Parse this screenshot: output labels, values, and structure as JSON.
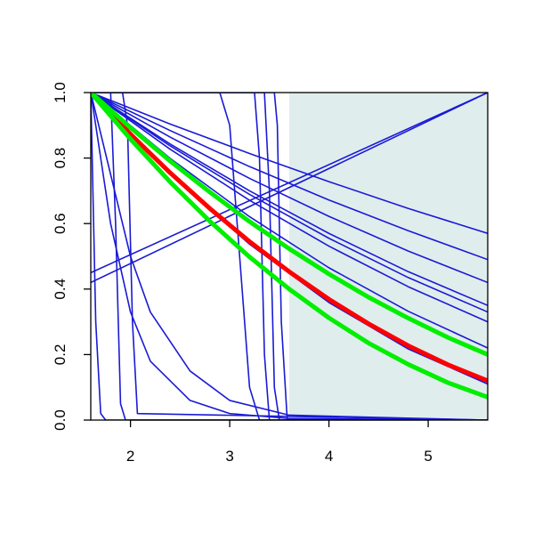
{
  "chart_data": {
    "type": "line",
    "xlim": [
      1.6,
      5.6
    ],
    "ylim": [
      0,
      1
    ],
    "xticks": [
      2,
      3,
      4,
      5
    ],
    "yticks": [
      {
        "value": 0,
        "label": "0.0"
      },
      0.2,
      0.4,
      0.6,
      0.8,
      {
        "value": 1,
        "label": "1.0"
      }
    ],
    "shade": {
      "x": [
        3.6,
        5.6
      ],
      "color": "#e0eded"
    },
    "series": [
      {
        "color": "#1a1ad6",
        "x": [
          1.6,
          2.4,
          3.2,
          4.0,
          4.8,
          5.6
        ],
        "values": [
          1,
          0.904,
          0.814,
          0.728,
          0.646,
          0.57
        ]
      },
      {
        "color": "#1a1ad6",
        "x": [
          1.6,
          2.4,
          3.2,
          4.0,
          4.8,
          5.6
        ],
        "values": [
          1,
          0.884,
          0.774,
          0.672,
          0.578,
          0.49
        ]
      },
      {
        "color": "#1a1ad6",
        "x": [
          1.6,
          2.4,
          3.2,
          4.0,
          4.8,
          5.6
        ],
        "values": [
          1,
          0.864,
          0.738,
          0.622,
          0.516,
          0.42
        ]
      },
      {
        "color": "#1a1ad6",
        "x": [
          1.6,
          2.4,
          3.2,
          4.0,
          4.8,
          5.6
        ],
        "values": [
          1,
          0.843,
          0.7,
          0.57,
          0.453,
          0.35
        ]
      },
      {
        "color": "#1a1ad6",
        "x": [
          1.6,
          2.4,
          3.2,
          4.0,
          4.8,
          5.6
        ],
        "values": [
          1,
          0.837,
          0.689,
          0.555,
          0.435,
          0.33
        ]
      },
      {
        "color": "#1a1ad6",
        "x": [
          1.6,
          2.4,
          3.2,
          4.0,
          4.8,
          5.6
        ],
        "values": [
          1,
          0.827,
          0.671,
          0.531,
          0.407,
          0.3
        ]
      },
      {
        "color": "#1a1ad6",
        "x": [
          1.6,
          2.4,
          3.2,
          4.0,
          4.8,
          5.6
        ],
        "values": [
          1,
          0.799,
          0.621,
          0.465,
          0.332,
          0.22
        ]
      },
      {
        "color": "#1a1ad6",
        "x": [
          1.6,
          2.4,
          3.2,
          4.0,
          4.8,
          5.6
        ],
        "values": [
          1,
          0.75,
          0.537,
          0.359,
          0.217,
          0.11
        ]
      },
      {
        "color": "#1a1ad6",
        "x": [
          1.6,
          5.6
        ],
        "values": [
          0.45,
          1
        ]
      },
      {
        "color": "#1a1ad6",
        "x": [
          1.6,
          5.6
        ],
        "values": [
          0.42,
          1
        ]
      },
      {
        "color": "#1a1ad6",
        "x": [
          1.6,
          2.9,
          3.0,
          3.1,
          3.2,
          3.3,
          5.6
        ],
        "values": [
          1,
          1,
          0.9,
          0.5,
          0.1,
          0,
          0
        ]
      },
      {
        "color": "#1a1ad6",
        "x": [
          1.6,
          3.25,
          3.3,
          3.35,
          3.4,
          5.6
        ],
        "values": [
          1,
          1,
          0.8,
          0.2,
          0,
          0
        ]
      },
      {
        "color": "#1a1ad6",
        "x": [
          1.6,
          3.35,
          3.4,
          3.45,
          3.5,
          5.6
        ],
        "values": [
          1,
          1,
          0.7,
          0.1,
          0,
          0
        ]
      },
      {
        "color": "#1a1ad6",
        "x": [
          1.6,
          3.45,
          3.48,
          3.52,
          3.58,
          5.6
        ],
        "values": [
          1,
          1,
          0.9,
          0.3,
          0,
          0
        ]
      },
      {
        "color": "#1a1ad6",
        "x": [
          1.6,
          1.8,
          1.85,
          1.9,
          1.95,
          5.6
        ],
        "values": [
          1,
          1,
          0.6,
          0.05,
          0,
          0
        ]
      },
      {
        "color": "#1a1ad6",
        "x": [
          1.6,
          1.92,
          1.97,
          2.02,
          2.07,
          5.6
        ],
        "values": [
          1,
          1,
          0.9,
          0.3,
          0.02,
          0
        ]
      },
      {
        "color": "#1a1ad6",
        "x": [
          1.6,
          1.8,
          2.0,
          2.2,
          2.6,
          3.0,
          3.6,
          5.6
        ],
        "values": [
          1,
          0.6,
          0.33,
          0.18,
          0.06,
          0.02,
          0.005,
          0
        ]
      },
      {
        "color": "#1a1ad6",
        "x": [
          1.6,
          1.8,
          2.0,
          2.2,
          2.6,
          3.0,
          3.6,
          5.6
        ],
        "values": [
          1,
          0.75,
          0.5,
          0.33,
          0.15,
          0.06,
          0.015,
          0
        ]
      },
      {
        "color": "#1a1ad6",
        "x": [
          1.6,
          1.65,
          1.7,
          1.75,
          5.6
        ],
        "values": [
          1,
          0.3,
          0.02,
          0,
          0
        ]
      },
      {
        "color": "#ff0000",
        "x": [
          1.6,
          2.0,
          2.4,
          2.8,
          3.2,
          3.6,
          4.0,
          4.4,
          4.8,
          5.2,
          5.6
        ],
        "values": [
          1,
          0.873,
          0.755,
          0.646,
          0.545,
          0.453,
          0.369,
          0.294,
          0.227,
          0.169,
          0.12
        ]
      },
      {
        "color": "#00ee00",
        "x": [
          1.6,
          2.0,
          2.4,
          2.8,
          3.2,
          3.6,
          4.0,
          4.4,
          4.8,
          5.2,
          5.6
        ],
        "values": [
          1,
          0.858,
          0.727,
          0.607,
          0.498,
          0.4,
          0.312,
          0.235,
          0.17,
          0.114,
          0.07
        ]
      },
      {
        "color": "#00ee00",
        "x": [
          1.6,
          2.0,
          2.4,
          2.8,
          3.2,
          3.6,
          4.0,
          4.4,
          4.8,
          5.2,
          5.6
        ],
        "values": [
          1,
          0.893,
          0.791,
          0.696,
          0.606,
          0.523,
          0.446,
          0.375,
          0.311,
          0.252,
          0.2
        ]
      }
    ]
  }
}
